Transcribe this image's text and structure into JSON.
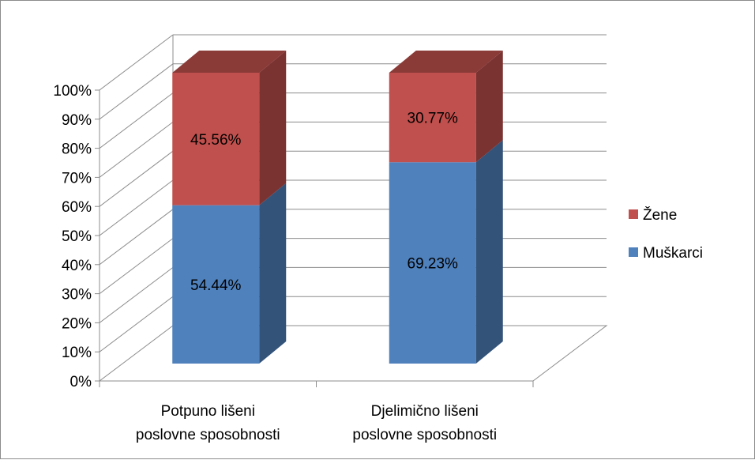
{
  "chart_data": {
    "type": "bar",
    "stacked": true,
    "percent_stacked": true,
    "three_d": true,
    "categories": [
      [
        "Potpuno lišeni",
        "poslovne sposobnosti"
      ],
      [
        "Djelimično lišeni",
        "poslovne sposobnosti"
      ]
    ],
    "series": [
      {
        "name": "Muškarci",
        "values": [
          54.44,
          69.23
        ],
        "labels": [
          "54.44%",
          "69.23%"
        ],
        "color": "#4f81bd"
      },
      {
        "name": "Žene",
        "values": [
          45.56,
          30.77
        ],
        "labels": [
          "45.56%",
          "30.77%"
        ],
        "color": "#c0504d"
      }
    ],
    "ylim": [
      0,
      100
    ],
    "yticks": [
      "0%",
      "10%",
      "20%",
      "30%",
      "40%",
      "50%",
      "60%",
      "70%",
      "80%",
      "90%",
      "100%"
    ],
    "grid": true,
    "legend_position": "right",
    "legend_order": [
      "Žene",
      "Muškarci"
    ]
  }
}
